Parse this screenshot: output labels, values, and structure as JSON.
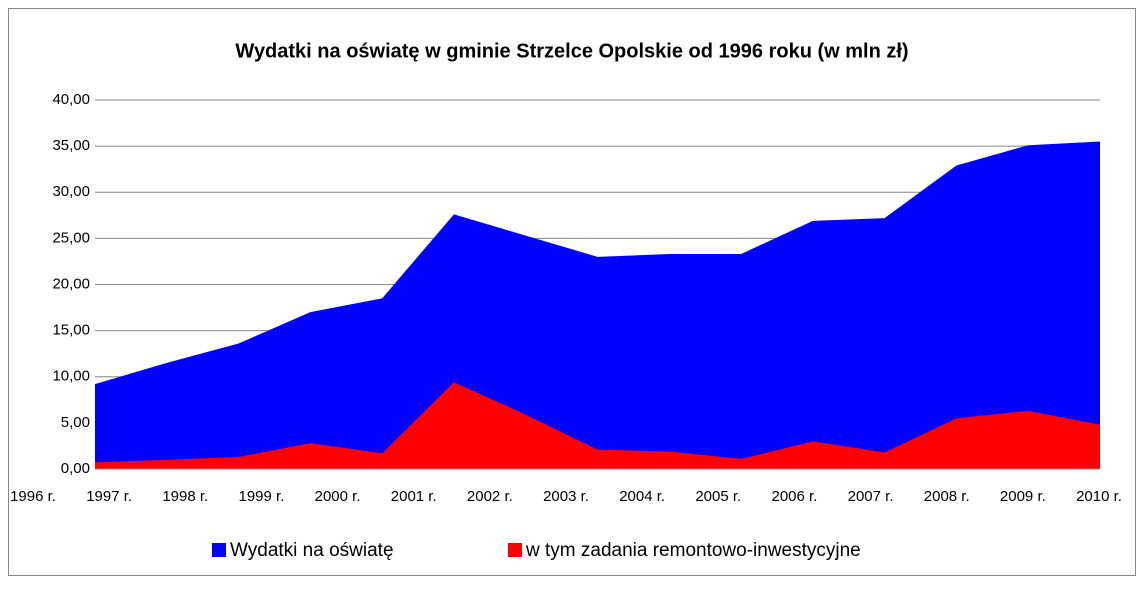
{
  "chart_data": {
    "type": "area",
    "title": "Wydatki na oświatę w gminie Strzelce Opolskie od 1996 roku (w mln zł)",
    "categories": [
      "1996 r.",
      "1997 r.",
      "1998 r.",
      "1999 r.",
      "2000 r.",
      "2001 r.",
      "2002 r.",
      "2003 r.",
      "2004 r.",
      "2005 r.",
      "2006 r.",
      "2007 r.",
      "2008 r.",
      "2009 r.",
      "2010 r."
    ],
    "series": [
      {
        "name": "Wydatki na oświatę",
        "color": "#0000ff",
        "values": [
          9.2,
          11.5,
          13.6,
          17.0,
          18.5,
          27.6,
          25.3,
          23.0,
          23.3,
          23.3,
          26.9,
          27.2,
          32.9,
          35.1,
          35.5
        ]
      },
      {
        "name": "w tym zadania remontowo-inwestycyjne",
        "color": "#ff0000",
        "values": [
          0.7,
          1.0,
          1.3,
          2.8,
          1.7,
          9.4,
          5.9,
          2.1,
          1.9,
          1.1,
          3.0,
          1.8,
          5.5,
          6.3,
          4.8
        ]
      }
    ],
    "ylim": [
      0,
      40
    ],
    "yticks": [
      {
        "value": 0,
        "label": "0,00"
      },
      {
        "value": 5,
        "label": "5,00"
      },
      {
        "value": 10,
        "label": "10,00"
      },
      {
        "value": 15,
        "label": "15,00"
      },
      {
        "value": 20,
        "label": "20,00"
      },
      {
        "value": 25,
        "label": "25,00"
      },
      {
        "value": 30,
        "label": "30,00"
      },
      {
        "value": 35,
        "label": "35,00"
      },
      {
        "value": 40,
        "label": "40,00"
      }
    ],
    "grid": true,
    "legend": "bottom"
  }
}
